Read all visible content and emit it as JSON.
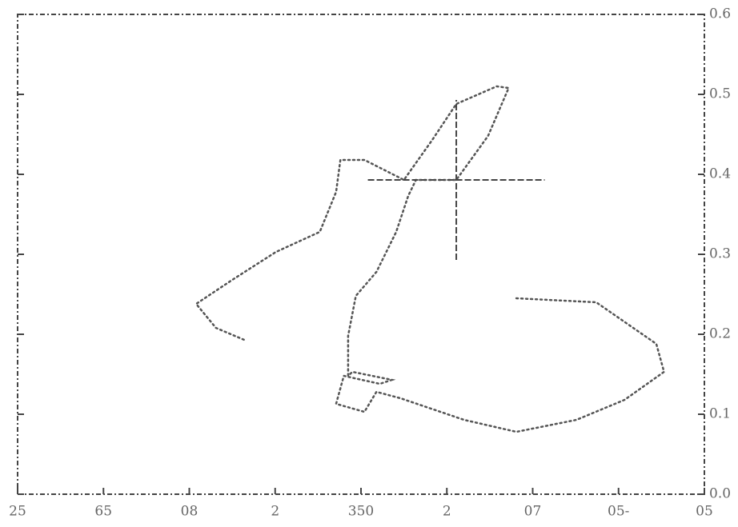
{
  "chart_data": {
    "type": "line",
    "x": [
      5.81,
      6.74,
      7.44,
      7.53,
      7.07,
      6.51,
      5.81,
      5.2,
      4.46,
      4.18,
      4.04,
      3.71,
      3.8,
      4.22,
      4.36,
      3.9,
      3.85,
      3.85,
      3.94,
      4.18,
      4.41,
      4.55,
      4.64,
      5.11,
      5.48,
      5.72,
      5.58,
      5.11,
      4.83,
      4.5,
      4.04,
      3.76,
      3.71,
      3.52,
      3.01,
      2.5,
      2.08,
      2.31,
      2.64
    ],
    "series": [
      {
        "color": "#555555",
        "values": [
          0.245,
          0.24,
          0.188,
          0.153,
          0.118,
          0.093,
          0.078,
          0.093,
          0.12,
          0.128,
          0.103,
          0.113,
          0.148,
          0.138,
          0.143,
          0.153,
          0.148,
          0.198,
          0.248,
          0.278,
          0.328,
          0.373,
          0.393,
          0.393,
          0.448,
          0.508,
          0.51,
          0.488,
          0.443,
          0.393,
          0.418,
          0.418,
          0.378,
          0.328,
          0.303,
          0.268,
          0.238,
          0.208,
          0.193
        ]
      }
    ],
    "errorbar": {
      "x": 5.11,
      "y": 0.393,
      "xerr": 1.03,
      "yerr": 0.1
    },
    "xlim": [
      0,
      8
    ],
    "xticks": [
      {
        "value": 0,
        "label": "25"
      },
      {
        "value": 1,
        "label": "65"
      },
      {
        "value": 2,
        "label": "08"
      },
      {
        "value": 3,
        "label": "2"
      },
      {
        "value": 4,
        "label": "350"
      },
      {
        "value": 5,
        "label": "2"
      },
      {
        "value": 6,
        "label": "07"
      },
      {
        "value": 7,
        "label": "05-"
      },
      {
        "value": 8,
        "label": "05"
      }
    ],
    "ylim": [
      0,
      0.6
    ],
    "yticks": [
      {
        "value": 0,
        "label": "0.0"
      },
      0.1,
      0.2,
      0.3,
      0.4,
      0.5,
      0.6
    ]
  }
}
